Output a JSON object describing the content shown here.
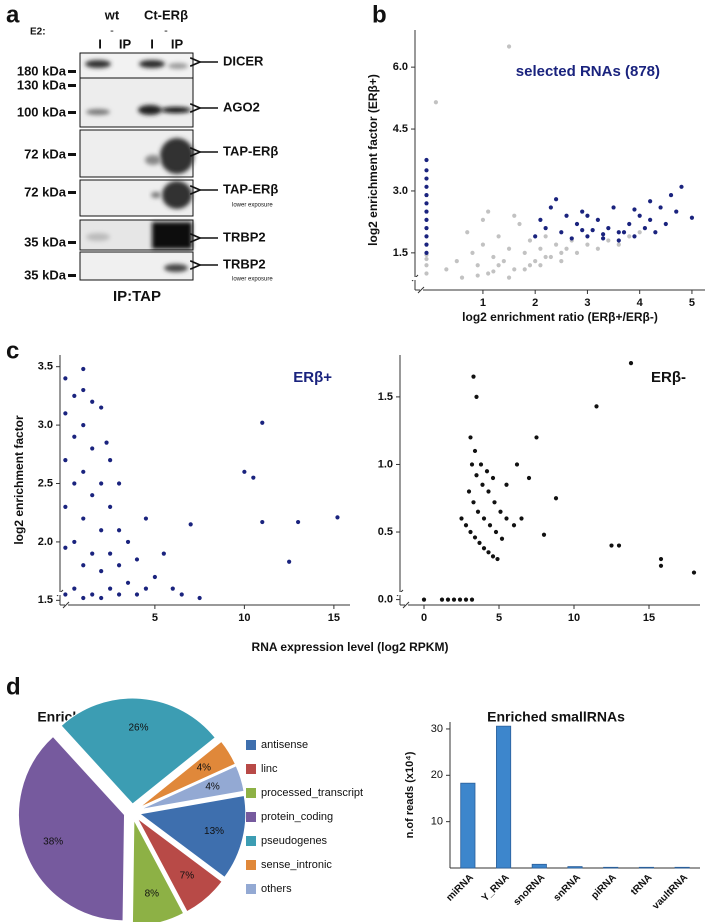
{
  "panels": [
    "a",
    "b",
    "c",
    "d"
  ],
  "blot": {
    "e2_label": "E2:",
    "groups": [
      "wt",
      "Ct-ERβ"
    ],
    "e2": [
      "-",
      "-"
    ],
    "lanes": [
      "I",
      "IP",
      "I",
      "IP"
    ],
    "markers": [
      "180 kDa",
      "130 kDa",
      "100 kDa",
      "72 kDa",
      "72 kDa",
      "35 kDa",
      "35 kDa"
    ],
    "rows": [
      {
        "label": "DICER"
      },
      {
        "label": "AGO2"
      },
      {
        "label": "TAP-ERβ"
      },
      {
        "label": "TAP-ERβ",
        "note": "lower exposure"
      },
      {
        "label": "TRBP2"
      },
      {
        "label": "TRBP2",
        "note": "lower exposure"
      }
    ],
    "footer": "IP:TAP"
  },
  "chart_data": [
    {
      "type": "scatter",
      "xlabel": "log2 enrichment ratio (ERβ+/ERβ-)",
      "ylabel": "log2 enrichment factor (ERβ+)",
      "annotation": "selected RNAs (878)",
      "annotation_color": "#1a237e",
      "xlim": [
        -0.3,
        5.25
      ],
      "ylim": [
        0.6,
        6.9
      ],
      "xticks": [
        1,
        2,
        3,
        4,
        5
      ],
      "yticks": [
        1.5,
        {
          "value": 3.0,
          "label": "3.0"
        },
        4.5,
        {
          "value": 6.0,
          "label": "6.0"
        }
      ],
      "series": [
        {
          "color": "#c2c2c2",
          "x": [
            0.3,
            0.5,
            0.6,
            0.8,
            0.9,
            1.0,
            1.1,
            1.2,
            1.3,
            1.4,
            1.5,
            1.6,
            1.7,
            1.8,
            1.9,
            2.0,
            2.1,
            2.2,
            2.3,
            2.4,
            2.5,
            2.6,
            2.7,
            2.8,
            3.0,
            3.2,
            3.4,
            3.6,
            3.8,
            4.0,
            0.7,
            1.0,
            1.3,
            1.6,
            1.9,
            2.2,
            2.5,
            0.9,
            1.2,
            1.5,
            1.8,
            2.1,
            1.5,
            0.1,
            1.1
          ],
          "values": [
            1.1,
            1.3,
            0.9,
            1.5,
            1.2,
            1.7,
            1.0,
            1.4,
            1.9,
            1.3,
            1.6,
            1.1,
            2.2,
            1.5,
            1.8,
            1.3,
            1.6,
            1.9,
            1.4,
            1.7,
            1.5,
            1.6,
            1.8,
            1.5,
            1.7,
            1.6,
            1.8,
            1.7,
            1.9,
            2.0,
            2.0,
            2.3,
            1.2,
            2.4,
            1.2,
            1.4,
            1.3,
            0.95,
            1.05,
            0.9,
            1.1,
            1.2,
            6.5,
            5.15,
            2.5
          ]
        },
        {
          "color": "#c2c2c2",
          "x": [
            -0.08,
            -0.08,
            -0.08,
            -0.08
          ],
          "values": [
            1.0,
            1.2,
            1.35,
            1.45
          ]
        },
        {
          "color": "#1a237e",
          "x": [
            2.0,
            2.2,
            2.3,
            2.5,
            2.6,
            2.7,
            2.8,
            2.9,
            3.0,
            3.1,
            3.2,
            3.3,
            3.4,
            3.5,
            3.6,
            3.7,
            3.8,
            3.9,
            4.0,
            4.1,
            4.2,
            4.3,
            4.4,
            4.5,
            4.6,
            4.7,
            4.8,
            5.0,
            2.4,
            2.9,
            3.3,
            3.6,
            3.9,
            4.2,
            2.1,
            3.0
          ],
          "values": [
            1.9,
            2.1,
            2.6,
            2.0,
            2.4,
            1.85,
            2.2,
            2.5,
            1.9,
            2.05,
            2.3,
            1.95,
            2.1,
            2.6,
            1.8,
            2.0,
            2.2,
            1.9,
            2.4,
            2.1,
            2.3,
            2.0,
            2.6,
            2.2,
            2.9,
            2.5,
            3.1,
            2.35,
            2.8,
            2.05,
            1.85,
            2.0,
            2.55,
            2.75,
            2.3,
            2.4
          ]
        },
        {
          "color": "#1a237e",
          "x": [
            -0.08,
            -0.08,
            -0.08,
            -0.08,
            -0.08,
            -0.08,
            -0.08,
            -0.08,
            -0.08,
            -0.08,
            -0.08,
            -0.08
          ],
          "values": [
            1.5,
            1.7,
            1.9,
            2.1,
            2.3,
            2.5,
            2.7,
            2.9,
            3.1,
            3.3,
            3.5,
            3.75
          ]
        }
      ]
    },
    {
      "type": "scatter",
      "xlabel": "RNA expression level (log2 RPKM)",
      "ylabel": "log2 enrichment factor",
      "annotation": "ERβ+",
      "annotation_color": "#1a237e",
      "xlim": [
        -0.3,
        15.9
      ],
      "ylim": [
        1.46,
        3.6
      ],
      "xticks": [
        5,
        10,
        15
      ],
      "yticks": [
        1.5,
        {
          "value": 2.0,
          "label": "2.0"
        },
        2.5,
        {
          "value": 3.0,
          "label": "3.0"
        },
        3.5
      ],
      "series": [
        {
          "color": "#1a237e",
          "x": [
            0,
            0,
            0,
            0,
            0,
            0,
            0.5,
            0.5,
            0.5,
            0.5,
            0.5,
            1,
            1,
            1,
            1,
            1,
            1,
            1.5,
            1.5,
            1.5,
            1.5,
            1.5,
            2,
            2,
            2,
            2,
            2,
            2.5,
            2.5,
            2.5,
            2.5,
            3,
            3,
            3,
            3,
            3.5,
            3.5,
            4,
            4,
            4.5,
            4.5,
            5,
            5.5,
            6,
            6.5,
            7,
            7.5,
            10,
            10.5,
            11,
            11,
            12.5,
            13,
            15.2,
            1,
            2.3
          ],
          "values": [
            1.55,
            1.95,
            2.3,
            2.7,
            3.1,
            3.4,
            1.6,
            2.0,
            2.5,
            2.9,
            3.25,
            1.52,
            1.8,
            2.2,
            2.6,
            3.0,
            3.48,
            1.55,
            1.9,
            2.4,
            2.8,
            3.2,
            1.52,
            1.75,
            2.1,
            2.5,
            3.15,
            1.6,
            1.9,
            2.3,
            2.7,
            1.55,
            1.8,
            2.1,
            2.5,
            1.65,
            2.0,
            1.55,
            1.85,
            1.6,
            2.2,
            1.7,
            1.9,
            1.6,
            1.55,
            2.15,
            1.52,
            2.6,
            2.55,
            3.02,
            2.17,
            1.83,
            2.17,
            2.21,
            3.3,
            2.85
          ]
        }
      ]
    },
    {
      "type": "scatter",
      "annotation": "ERβ-",
      "annotation_color": "#111111",
      "xlim": [
        -1.6,
        18.4
      ],
      "ylim": [
        -0.04,
        1.81
      ],
      "xticks": [
        0,
        5,
        10,
        15
      ],
      "yticks": [
        {
          "value": 0.0,
          "label": "0.0"
        },
        0.5,
        {
          "value": 1.0,
          "label": "1.0"
        },
        1.5
      ],
      "series": [
        {
          "color": "#111111",
          "x": [
            0,
            1.2,
            1.6,
            2.0,
            2.4,
            2.8,
            3.2,
            2.5,
            2.8,
            3.1,
            3.4,
            3.7,
            4.0,
            4.3,
            4.6,
            4.9,
            3.0,
            3.3,
            3.6,
            4.0,
            4.4,
            4.8,
            5.2,
            3.2,
            3.5,
            3.9,
            4.3,
            4.7,
            5.1,
            5.5,
            3.1,
            3.4,
            3.8,
            4.2,
            4.6,
            5.5,
            6.0,
            3.3,
            3.5,
            6.5,
            7.0,
            7.5,
            8.0,
            8.8,
            11.5,
            12.5,
            13.0,
            13.8,
            15.8,
            15.8,
            18.0,
            6.2
          ],
          "values": [
            0,
            0,
            0,
            0,
            0,
            0,
            0,
            0.6,
            0.55,
            0.5,
            0.46,
            0.42,
            0.38,
            0.35,
            0.32,
            0.3,
            0.8,
            0.72,
            0.65,
            0.6,
            0.55,
            0.5,
            0.45,
            1.0,
            0.92,
            0.85,
            0.8,
            0.72,
            0.65,
            0.6,
            1.2,
            1.1,
            1.0,
            0.95,
            0.9,
            0.85,
            0.55,
            1.65,
            1.5,
            0.6,
            0.9,
            1.2,
            0.48,
            0.75,
            1.43,
            0.4,
            0.4,
            1.75,
            0.3,
            0.25,
            0.2,
            1.0
          ]
        }
      ]
    },
    {
      "type": "pie",
      "title": "Enriched long RNAs",
      "categories": [
        "antisense",
        "linc",
        "processed_transcript",
        "protein_coding",
        "pseudogenes",
        "sense_intronic",
        "others"
      ],
      "values": [
        13,
        7,
        8,
        38,
        26,
        4,
        4
      ],
      "value_labels": [
        "13%",
        "7%",
        "8%",
        "38%",
        "26%",
        "4%",
        "4%"
      ],
      "colors": [
        "#3e6fae",
        "#b84a47",
        "#8db145",
        "#765a9e",
        "#3c9db3",
        "#e0883a",
        "#93a9d3"
      ]
    },
    {
      "type": "bar",
      "title": "Enriched smallRNAs",
      "ylabel": "n.of reads (x10⁴)",
      "categories": [
        "miRNA",
        "Y_RNA",
        "snoRNA",
        "snRNA",
        "piRNA",
        "tRNA",
        "vaultRNA"
      ],
      "values": [
        18.3,
        30.6,
        0.8,
        0.3,
        0.15,
        0.15,
        0.15
      ],
      "color": "#3d86cc",
      "ylim": [
        0,
        31.5
      ],
      "yticks": [
        10,
        20,
        30
      ]
    }
  ]
}
